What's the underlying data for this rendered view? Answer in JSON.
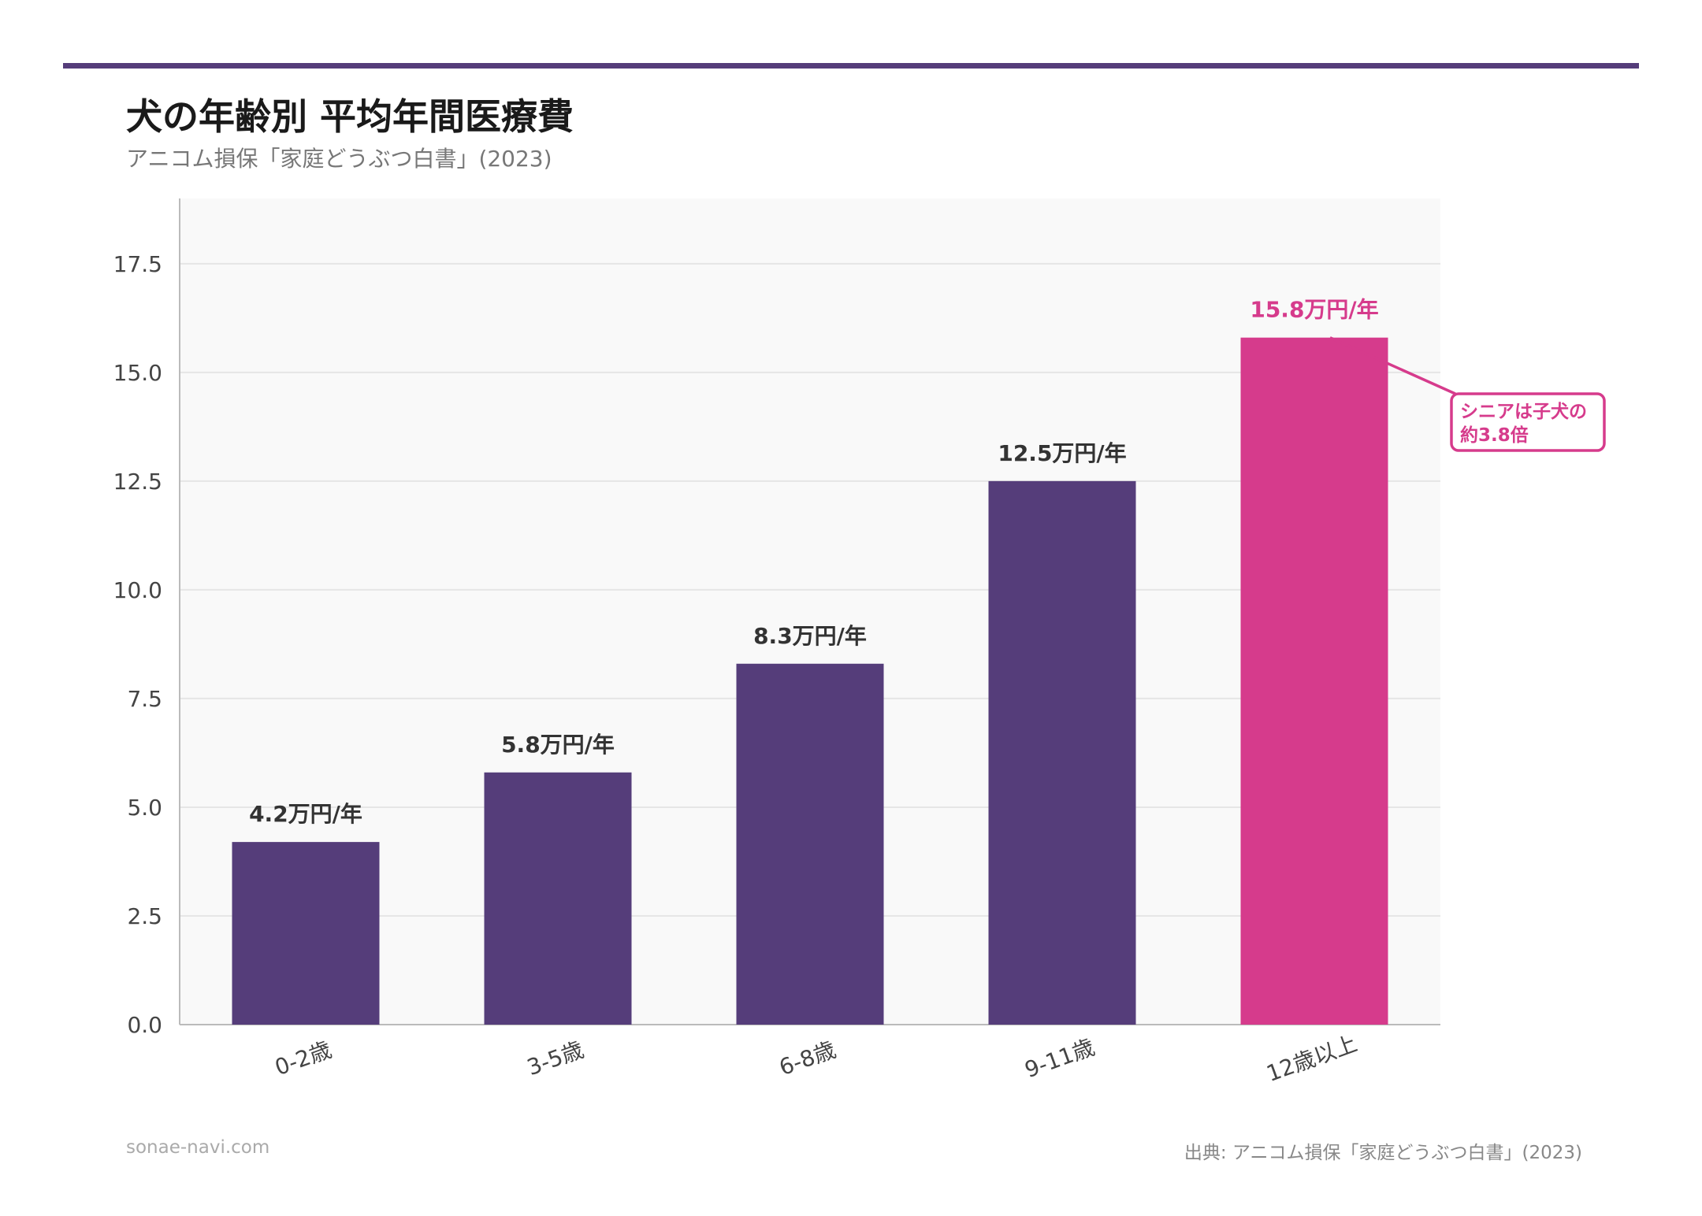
{
  "header": {
    "title": "犬の年齢別 平均年間医療費",
    "subtitle": "アニコム損保「家庭どうぶつ白書」(2023)"
  },
  "chart_data": {
    "type": "bar",
    "categories": [
      "0-2歳",
      "3-5歳",
      "6-8歳",
      "9-11歳",
      "12歳以上"
    ],
    "values": [
      4.2,
      5.8,
      8.3,
      12.5,
      15.8
    ],
    "data_labels": [
      "4.2万円/年",
      "5.8万円/年",
      "8.3万円/年",
      "12.5万円/年",
      "15.8万円/年"
    ],
    "yticks": [
      "0.0",
      "2.5",
      "5.0",
      "7.5",
      "10.0",
      "12.5",
      "15.0",
      "17.5"
    ],
    "ylim": [
      0,
      19
    ],
    "grid": true,
    "colors": {
      "bar": "#553d7a",
      "highlight": "#d63b8c",
      "plot_bg": "#f9f9f9",
      "grid": "#e6e6e6",
      "axis": "#bbbbbb"
    },
    "highlight_index": 4,
    "annotation": {
      "lines": [
        "シニアは子犬の",
        "約3.8倍"
      ]
    }
  },
  "footer": {
    "site": "sonae-navi.com",
    "source": "出典: アニコム損保「家庭どうぶつ白書」(2023)"
  }
}
